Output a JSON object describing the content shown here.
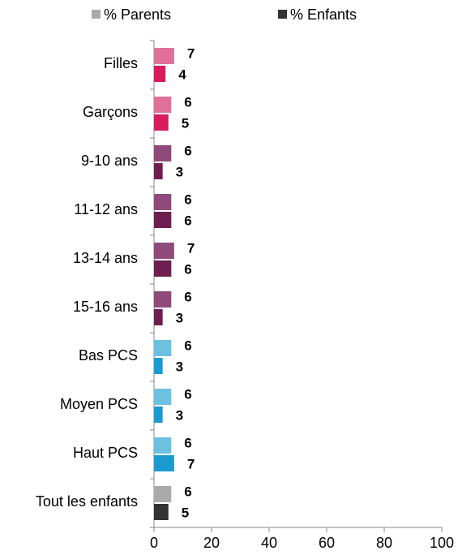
{
  "chart_data": {
    "type": "barh",
    "categories": [
      "Filles",
      "Garçons",
      "9-10 ans",
      "11-12 ans",
      "13-14 ans",
      "15-16 ans",
      "Bas PCS",
      "Moyen PCS",
      "Haut PCS",
      "Tout les enfants"
    ],
    "series": [
      {
        "name": "% Parents",
        "color": "#aaaaaa",
        "colors": [
          "#e07098",
          "#e07098",
          "#8e4a7a",
          "#8e4a7a",
          "#8e4a7a",
          "#8e4a7a",
          "#6cc0e0",
          "#6cc0e0",
          "#6cc0e0",
          "#aaaaaa"
        ],
        "values": [
          7,
          6,
          6,
          6,
          7,
          6,
          6,
          6,
          6,
          6
        ]
      },
      {
        "name": "% Enfants",
        "color": "#333333",
        "colors": [
          "#d81b5a",
          "#d81b5a",
          "#6e1f50",
          "#6e1f50",
          "#6e1f50",
          "#6e1f50",
          "#1a9ad0",
          "#1a9ad0",
          "#1a9ad0",
          "#333333"
        ],
        "values": [
          4,
          5,
          3,
          6,
          6,
          3,
          3,
          3,
          7,
          5
        ]
      }
    ],
    "xlim": [
      0,
      100
    ],
    "xticks": [
      0,
      20,
      40,
      60,
      80,
      100
    ]
  }
}
